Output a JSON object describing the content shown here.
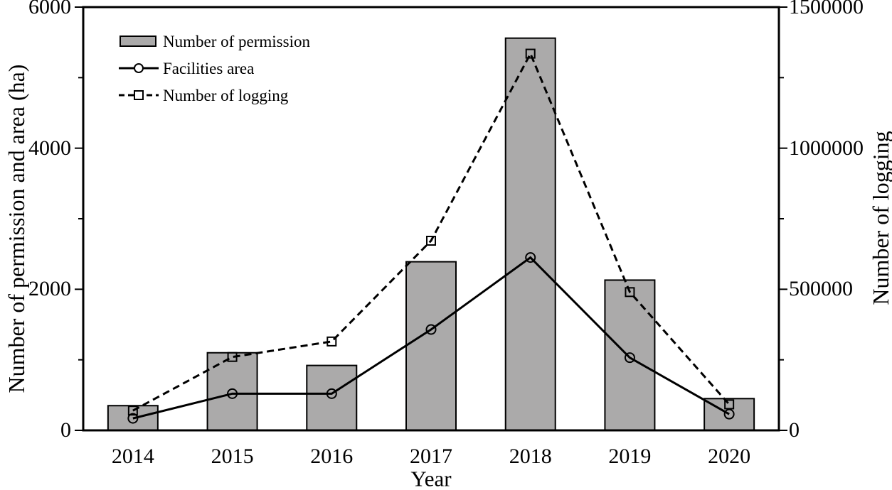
{
  "chart_data": {
    "type": "bar",
    "subtype": "dual-axis bar+line combo",
    "categories": [
      "2014",
      "2015",
      "2016",
      "2017",
      "2018",
      "2019",
      "2020"
    ],
    "series": [
      {
        "name": "Number of permission",
        "type": "bar",
        "axis": "left",
        "values": [
          350,
          1100,
          920,
          2390,
          5560,
          2130,
          450
        ]
      },
      {
        "name": "Facilities area",
        "type": "line",
        "style": "solid",
        "marker": "circle",
        "axis": "left",
        "values": [
          170,
          520,
          520,
          1430,
          2450,
          1030,
          230
        ]
      },
      {
        "name": "Number of logging",
        "type": "line",
        "style": "dashed",
        "marker": "square",
        "axis": "right",
        "values": [
          70000,
          260000,
          315000,
          672000,
          1335000,
          490000,
          92000
        ]
      }
    ],
    "left_axis": {
      "label": "Number of permission and area (ha)",
      "range": [
        0,
        6000
      ],
      "ticks": [
        0,
        2000,
        4000,
        6000
      ],
      "minor_ticks": [
        1000,
        3000,
        5000
      ]
    },
    "right_axis": {
      "label": "Number of logging",
      "range": [
        0,
        1500000
      ],
      "ticks": [
        0,
        500000,
        1000000,
        1500000
      ],
      "minor_ticks": [
        250000,
        750000,
        1250000
      ]
    },
    "x_axis": {
      "label": "Year"
    },
    "legend": {
      "position": "top-left-inside"
    },
    "colors": {
      "bar_fill": "#ABAAAA",
      "bar_edge": "#000000",
      "line": "#000000",
      "background": "#FFFFFF",
      "text": "#000000"
    },
    "grid": "off"
  }
}
